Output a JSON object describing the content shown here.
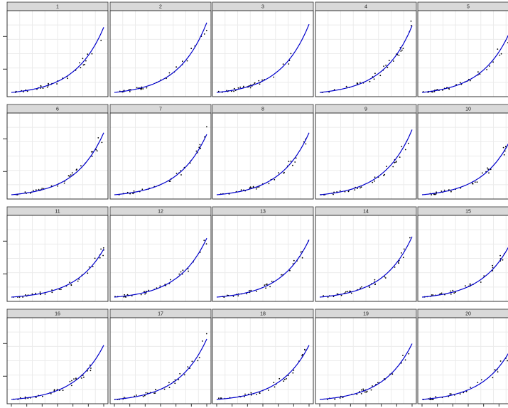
{
  "chart_data": {
    "type": "scatter",
    "layout": "faceted small multiples, 4 rows x 5 columns, shared axes, no tick labels",
    "grid": true,
    "legend": "none",
    "colors": {
      "points": "#000000",
      "curve": "#0000cc",
      "strip": "#d9d9d9",
      "grid": "#ebebeb",
      "panel_border": "#333333"
    },
    "x_domain": [
      0,
      1
    ],
    "y_domain": [
      0,
      1
    ],
    "fit": {
      "kind": "exponential",
      "growth_rate": 3.2
    },
    "panels": [
      {
        "label": "1",
        "fit_scale": 0.84,
        "seed": 11
      },
      {
        "label": "2",
        "fit_scale": 0.9,
        "seed": 23
      },
      {
        "label": "3",
        "fit_scale": 0.88,
        "seed": 37
      },
      {
        "label": "4",
        "fit_scale": 0.86,
        "seed": 41
      },
      {
        "label": "5",
        "fit_scale": 0.92,
        "seed": 53
      },
      {
        "label": "6",
        "fit_scale": 0.8,
        "seed": 61
      },
      {
        "label": "7",
        "fit_scale": 0.78,
        "seed": 73
      },
      {
        "label": "8",
        "fit_scale": 0.8,
        "seed": 89
      },
      {
        "label": "9",
        "fit_scale": 0.84,
        "seed": 97
      },
      {
        "label": "10",
        "fit_scale": 0.82,
        "seed": 101
      },
      {
        "label": "11",
        "fit_scale": 0.62,
        "seed": 113
      },
      {
        "label": "12",
        "fit_scale": 0.76,
        "seed": 127
      },
      {
        "label": "13",
        "fit_scale": 0.74,
        "seed": 131
      },
      {
        "label": "14",
        "fit_scale": 0.78,
        "seed": 149
      },
      {
        "label": "15",
        "fit_scale": 0.8,
        "seed": 151
      },
      {
        "label": "16",
        "fit_scale": 0.7,
        "seed": 163
      },
      {
        "label": "17",
        "fit_scale": 0.78,
        "seed": 173
      },
      {
        "label": "18",
        "fit_scale": 0.7,
        "seed": 181
      },
      {
        "label": "19",
        "fit_scale": 0.72,
        "seed": 191
      },
      {
        "label": "20",
        "fit_scale": 0.74,
        "seed": 199
      }
    ]
  }
}
